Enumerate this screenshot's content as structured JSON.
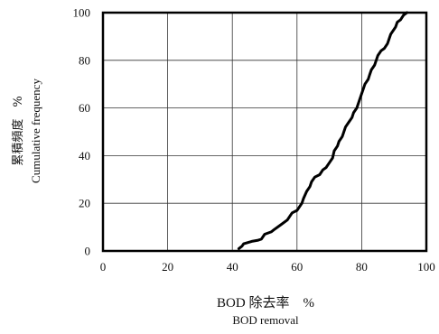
{
  "chart_data": {
    "type": "line",
    "xlabel": "BOD 除去率　%",
    "xlabel_en": "BOD removal",
    "ylabel": "累積頻度　%",
    "ylabel_en": "Cumulative frequency",
    "xlim": [
      0,
      100
    ],
    "ylim": [
      0,
      100
    ],
    "x_ticks": [
      0,
      20,
      40,
      60,
      80,
      100
    ],
    "y_ticks": [
      0,
      20,
      40,
      60,
      80,
      100
    ],
    "x_tick_labels": [
      "0",
      "20",
      "40",
      "60",
      "80",
      "100"
    ],
    "y_tick_labels": [
      "0",
      "20",
      "40",
      "60",
      "80",
      "100"
    ],
    "grid": true,
    "series": [
      {
        "color": "#000000",
        "x": [
          42,
          43,
          43.5,
          46,
          48,
          49,
          50,
          52,
          53,
          55,
          57,
          58,
          58.5,
          60,
          61,
          61.5,
          62,
          63,
          64,
          64.5,
          65.5,
          67,
          68,
          69,
          70,
          71,
          71.5,
          72.5,
          73,
          74,
          74.5,
          75,
          76,
          77,
          77.5,
          78.5,
          79,
          79.5,
          80,
          80.5,
          81,
          82,
          82.5,
          83,
          84,
          84.5,
          85,
          86,
          87,
          88,
          88.5,
          89,
          90,
          90.5,
          91,
          92,
          93,
          94
        ],
        "y": [
          1,
          2,
          3,
          4,
          4.5,
          5,
          7,
          8,
          9,
          11,
          13,
          15,
          16,
          17,
          19,
          20,
          22,
          25,
          27,
          29,
          31,
          32,
          34,
          35,
          37,
          39,
          42,
          44,
          46,
          48,
          50,
          52,
          54,
          56,
          58,
          60,
          62,
          64,
          66,
          68,
          70,
          72,
          74,
          76,
          78,
          80,
          82,
          84,
          85,
          87,
          89,
          91,
          93,
          94,
          96,
          97,
          99,
          100
        ]
      }
    ]
  }
}
